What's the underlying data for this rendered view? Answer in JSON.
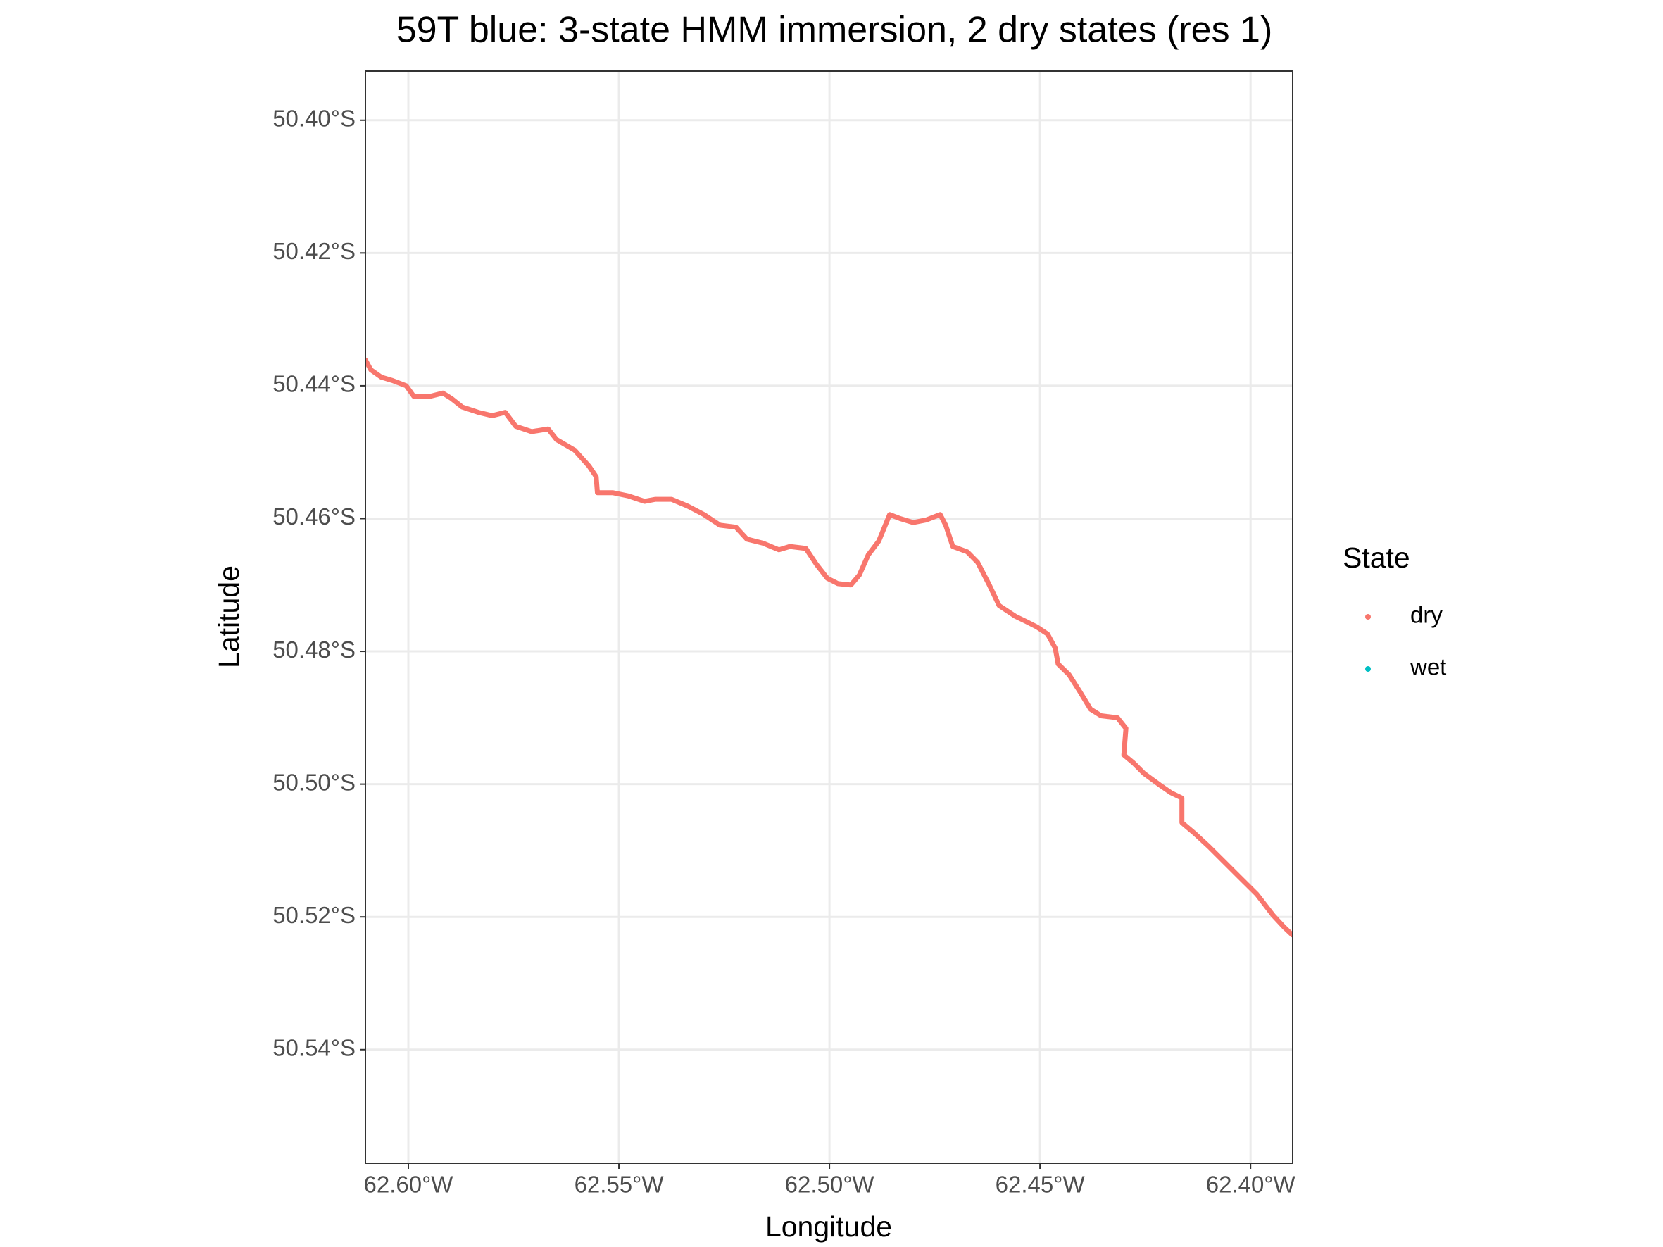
{
  "chart_data": {
    "type": "line",
    "title": "59T blue: 3-state HMM immersion, 2 dry states (res 1)",
    "x_label": "Longitude",
    "y_label": "Latitude",
    "legend_title": "State",
    "legend_position": "right",
    "grid": true,
    "xlim": [
      -62.6102,
      -62.39
    ],
    "ylim": [
      -50.5571,
      -50.3926
    ],
    "xticks": [
      {
        "value": -62.6,
        "label": "62.60°W"
      },
      {
        "value": -62.55,
        "label": "62.55°W"
      },
      {
        "value": -62.5,
        "label": "62.50°W"
      },
      {
        "value": -62.45,
        "label": "62.45°W"
      },
      {
        "value": -62.4,
        "label": "62.40°W"
      }
    ],
    "yticks": [
      {
        "value": -50.4,
        "label": "50.40°S"
      },
      {
        "value": -50.42,
        "label": "50.42°S"
      },
      {
        "value": -50.44,
        "label": "50.44°S"
      },
      {
        "value": -50.46,
        "label": "50.46°S"
      },
      {
        "value": -50.48,
        "label": "50.48°S"
      },
      {
        "value": -50.5,
        "label": "50.50°S"
      },
      {
        "value": -50.52,
        "label": "50.52°S"
      },
      {
        "value": -50.54,
        "label": "50.54°S"
      }
    ],
    "series": [
      {
        "name": "dry",
        "color": "#F8766D",
        "x": [
          -62.6102,
          -62.6089,
          -62.6064,
          -62.6038,
          -62.6005,
          -62.5987,
          -62.5949,
          -62.5918,
          -62.5898,
          -62.5872,
          -62.5834,
          -62.5801,
          -62.577,
          -62.5745,
          -62.5707,
          -62.5668,
          -62.5648,
          -62.5605,
          -62.5571,
          -62.5554,
          -62.5551,
          -62.5515,
          -62.5477,
          -62.5439,
          -62.5413,
          -62.5375,
          -62.5337,
          -62.5298,
          -62.526,
          -62.5222,
          -62.5196,
          -62.5158,
          -62.512,
          -62.5094,
          -62.5056,
          -62.5031,
          -62.5005,
          -62.498,
          -62.4949,
          -62.4929,
          -62.4908,
          -62.4883,
          -62.4857,
          -62.4832,
          -62.4801,
          -62.477,
          -62.4737,
          -62.4724,
          -62.4707,
          -62.4673,
          -62.4648,
          -62.4622,
          -62.4597,
          -62.4559,
          -62.4533,
          -62.4508,
          -62.4482,
          -62.4464,
          -62.4457,
          -62.4431,
          -62.4406,
          -62.438,
          -62.4355,
          -62.4316,
          -62.4296,
          -62.4301,
          -62.4278,
          -62.4253,
          -62.4214,
          -62.4189,
          -62.4163,
          -62.4163,
          -62.4133,
          -62.4099,
          -62.4061,
          -62.4023,
          -62.3985,
          -62.3946,
          -62.3921,
          -62.3901
        ],
        "values": [
          -50.4361,
          -50.4376,
          -50.4387,
          -50.4392,
          -50.44,
          -50.4416,
          -50.4416,
          -50.4411,
          -50.4419,
          -50.4432,
          -50.444,
          -50.4445,
          -50.444,
          -50.4461,
          -50.4469,
          -50.4465,
          -50.4481,
          -50.4497,
          -50.4521,
          -50.4537,
          -50.4561,
          -50.4561,
          -50.4566,
          -50.4574,
          -50.4571,
          -50.4571,
          -50.4581,
          -50.4594,
          -50.461,
          -50.4613,
          -50.4631,
          -50.4637,
          -50.4647,
          -50.4642,
          -50.4645,
          -50.4669,
          -50.469,
          -50.4698,
          -50.47,
          -50.4685,
          -50.4655,
          -50.4634,
          -50.4594,
          -50.46,
          -50.4606,
          -50.4602,
          -50.4594,
          -50.461,
          -50.4642,
          -50.465,
          -50.4666,
          -50.4698,
          -50.4731,
          -50.4747,
          -50.4755,
          -50.4763,
          -50.4774,
          -50.4795,
          -50.4819,
          -50.4835,
          -50.486,
          -50.4887,
          -50.4897,
          -50.49,
          -50.4916,
          -50.4956,
          -50.4968,
          -50.4984,
          -50.5002,
          -50.5013,
          -50.5021,
          -50.5058,
          -50.5074,
          -50.5094,
          -50.5118,
          -50.5142,
          -50.5166,
          -50.5198,
          -50.5215,
          -50.5227
        ]
      },
      {
        "name": "wet",
        "color": "#00BFC4",
        "x": [],
        "values": []
      }
    ]
  }
}
